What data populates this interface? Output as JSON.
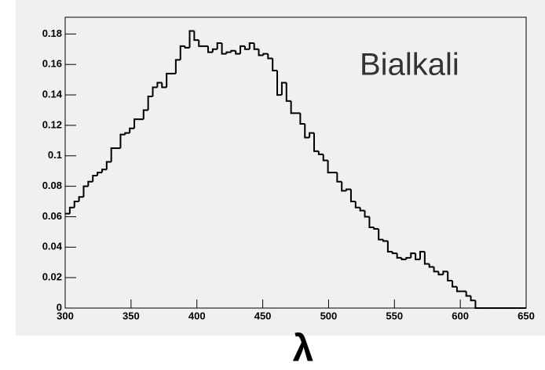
{
  "chart_data": {
    "type": "histogram",
    "annotation": "Bialkali",
    "x_label": "λ",
    "color": "#000000",
    "bins": [
      300,
      303.5,
      307,
      310.5,
      314,
      317.5,
      321,
      324.5,
      328,
      331.5,
      335,
      338.5,
      342,
      345.5,
      349,
      352.5,
      356,
      359.5,
      363,
      366.5,
      370,
      373.5,
      377,
      380.5,
      384,
      387.5,
      391,
      394.5,
      398,
      401.5,
      405,
      408.5,
      412,
      415.5,
      419,
      422.5,
      426,
      429.5,
      433,
      436.5,
      440,
      443.5,
      447,
      450.5,
      454,
      457.5,
      461,
      464.5,
      468,
      471.5,
      475,
      478.5,
      482,
      485.5,
      489,
      492.5,
      496,
      499.5,
      503,
      506.5,
      510,
      513.5,
      517,
      520.5,
      524,
      527.5,
      531,
      534.5,
      538,
      541.5,
      545,
      548.5,
      552,
      555.5,
      559,
      562.5,
      566,
      569.5,
      573,
      576.5,
      580,
      583.5,
      587,
      590.5,
      594,
      597.5,
      601,
      604.5,
      608,
      611.5,
      615,
      618.5,
      622,
      625.5,
      629,
      632.5,
      636,
      639.5,
      643,
      646.5,
      650
    ],
    "values": [
      0.062,
      0.066,
      0.07,
      0.073,
      0.08,
      0.083,
      0.087,
      0.089,
      0.091,
      0.096,
      0.105,
      0.105,
      0.114,
      0.115,
      0.118,
      0.124,
      0.124,
      0.13,
      0.139,
      0.145,
      0.148,
      0.145,
      0.154,
      0.154,
      0.163,
      0.172,
      0.171,
      0.182,
      0.176,
      0.172,
      0.172,
      0.168,
      0.17,
      0.174,
      0.167,
      0.168,
      0.169,
      0.167,
      0.172,
      0.17,
      0.174,
      0.17,
      0.166,
      0.167,
      0.164,
      0.156,
      0.14,
      0.148,
      0.136,
      0.128,
      0.128,
      0.121,
      0.112,
      0.115,
      0.103,
      0.101,
      0.097,
      0.089,
      0.089,
      0.083,
      0.077,
      0.078,
      0.07,
      0.066,
      0.064,
      0.06,
      0.053,
      0.052,
      0.045,
      0.044,
      0.037,
      0.036,
      0.033,
      0.032,
      0.033,
      0.036,
      0.032,
      0.037,
      0.029,
      0.027,
      0.024,
      0.022,
      0.024,
      0.018,
      0.014,
      0.011,
      0.011,
      0.008,
      0.005,
      0,
      0,
      0,
      0,
      0,
      0,
      0,
      0,
      0,
      0,
      0
    ],
    "xlim": [
      300,
      650
    ],
    "ylim": [
      0,
      0.191
    ],
    "xticks": [
      300,
      350,
      400,
      450,
      500,
      550,
      600,
      650
    ],
    "yticks": [
      0,
      0.02,
      0.04,
      0.06,
      0.08,
      0.1,
      0.12,
      0.14,
      0.16,
      0.18
    ]
  }
}
